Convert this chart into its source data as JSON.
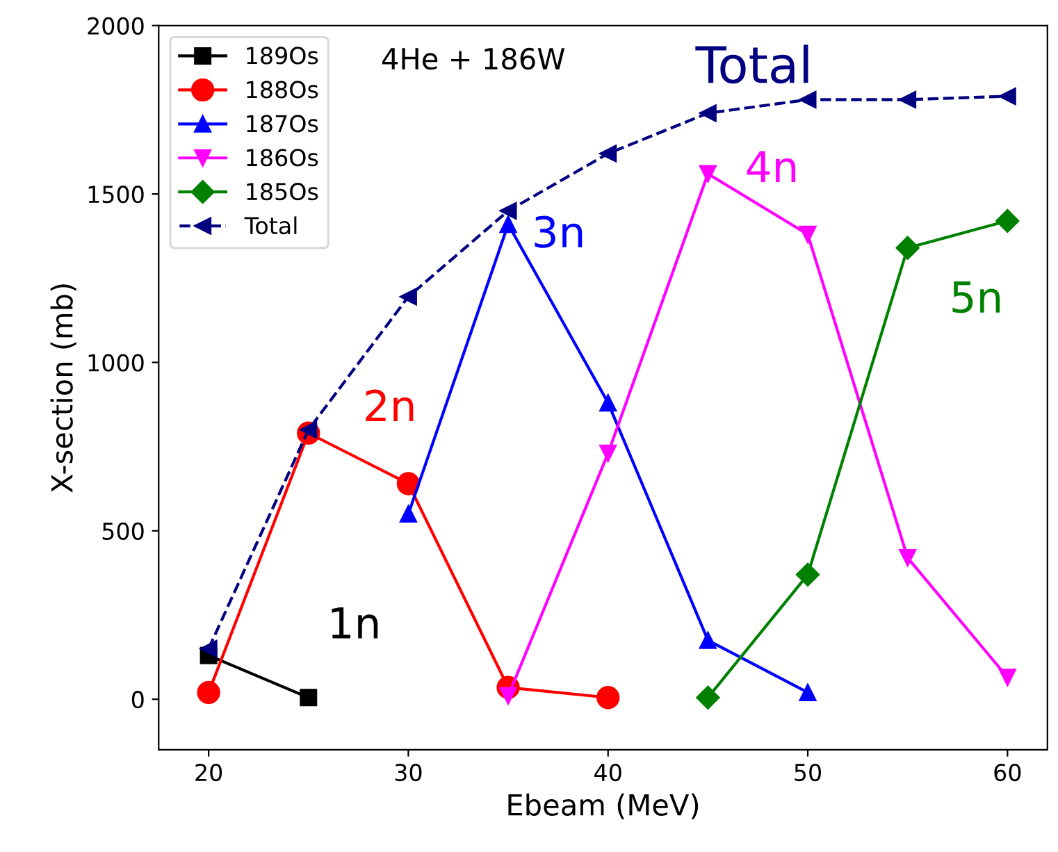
{
  "chart_data": {
    "type": "line",
    "title": "4He + 186W",
    "xlabel": "Ebeam (MeV)",
    "ylabel": "X-section (mb)",
    "xlim": [
      17.5,
      62
    ],
    "ylim": [
      -150,
      2000
    ],
    "xticks": [
      20,
      30,
      40,
      50,
      60
    ],
    "yticks": [
      0,
      500,
      1000,
      1500,
      2000
    ],
    "grid": false,
    "legend": "top left",
    "line_style": "solid",
    "series": [
      {
        "name": "189Os",
        "color": "#000000",
        "marker": "square",
        "x": [
          20,
          25
        ],
        "values": [
          130,
          5
        ]
      },
      {
        "name": "188Os",
        "color": "#ff0000",
        "marker": "circle",
        "x": [
          20,
          25,
          30,
          35,
          40
        ],
        "values": [
          20,
          790,
          640,
          35,
          5
        ]
      },
      {
        "name": "187Os",
        "color": "#0000ff",
        "marker": "triangle",
        "x": [
          30,
          35,
          40,
          45,
          50
        ],
        "values": [
          550,
          1410,
          880,
          175,
          20
        ]
      },
      {
        "name": "186Os",
        "color": "#ff00ff",
        "marker": "triangle_down",
        "x": [
          35,
          40,
          45,
          50,
          55,
          60
        ],
        "values": [
          10,
          730,
          1560,
          1380,
          420,
          65
        ]
      },
      {
        "name": "185Os",
        "color": "#008000",
        "marker": "diamond",
        "x": [
          45,
          50,
          55,
          60
        ],
        "values": [
          5,
          370,
          1340,
          1420
        ]
      },
      {
        "name": "Total",
        "color": "#000080",
        "marker": "triangle_left",
        "line_style": "dashed",
        "x": [
          20,
          25,
          30,
          35,
          40,
          45,
          50,
          55,
          60
        ],
        "values": [
          150,
          800,
          1195,
          1450,
          1620,
          1740,
          1780,
          1780,
          1790
        ]
      }
    ],
    "annotations": [
      "1n",
      "2n",
      "3n",
      "4n",
      "5n",
      "Total"
    ]
  }
}
